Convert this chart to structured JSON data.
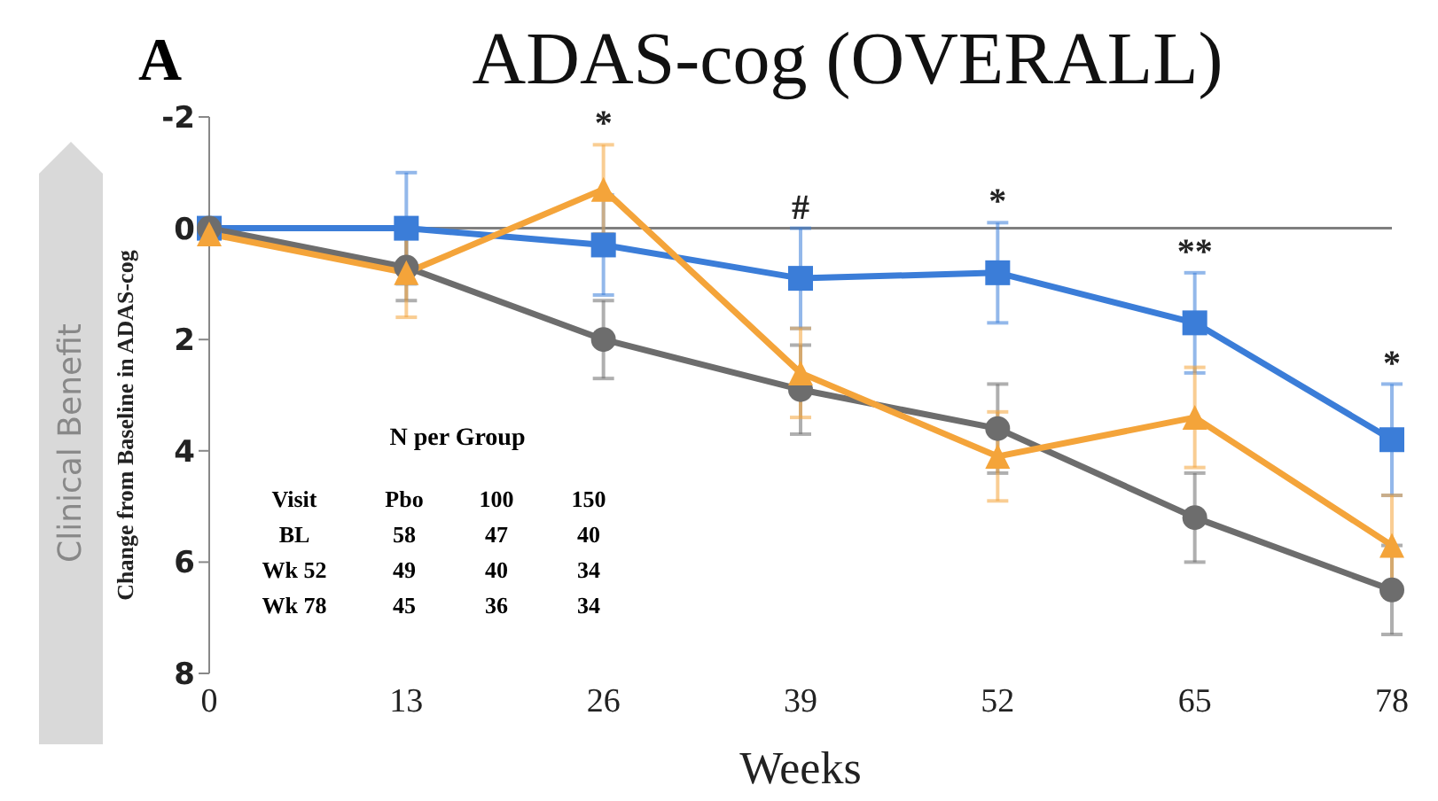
{
  "chart_data": {
    "type": "line",
    "title": "ADAS-cog (OVERALL)",
    "xlabel": "Weeks",
    "ylabel": "Change from Baseline in ADAS-cog",
    "x": [
      0,
      13,
      26,
      39,
      52,
      65,
      78
    ],
    "xlim": [
      0,
      78
    ],
    "xticks": [
      0,
      13,
      26,
      39,
      52,
      65,
      78
    ],
    "ylim": [
      8,
      -2
    ],
    "yticks": [
      -2,
      0,
      2,
      4,
      6,
      8
    ],
    "line_style": "solid",
    "series": [
      {
        "color": "#3b7dd8",
        "marker": "square",
        "values": [
          0,
          0,
          0.3,
          0.9,
          0.8,
          1.7,
          3.8
        ],
        "errors": [
          null,
          1,
          0.9,
          0.9,
          0.9,
          0.9,
          1
        ]
      },
      {
        "color": "#6d6d6d",
        "marker": "circle",
        "values": [
          0,
          0.7,
          2.0,
          2.9,
          3.6,
          5.2,
          6.5
        ],
        "errors": [
          null,
          0.6,
          0.7,
          0.8,
          0.8,
          0.8,
          0.8
        ]
      },
      {
        "color": "#f4a43a",
        "marker": "triangle",
        "values": [
          0.1,
          0.8,
          -0.7,
          2.6,
          4.1,
          3.4,
          5.7
        ],
        "errors": [
          null,
          0.8,
          0.8,
          0.8,
          0.8,
          0.9,
          0.9
        ]
      }
    ],
    "ref_lines": [
      {
        "axis": "y",
        "value": 0,
        "color": "#7f7f7f"
      }
    ],
    "annotations": [
      "A",
      "Clinical Benefit",
      "N per Group",
      "Visit",
      "Pbo",
      "100",
      "150",
      "BL",
      "58",
      "47",
      "40",
      "Wk 52",
      "49",
      "40",
      "34",
      "Wk 78",
      "45",
      "36",
      "34",
      "*",
      "#",
      "*",
      "**",
      "*"
    ]
  }
}
